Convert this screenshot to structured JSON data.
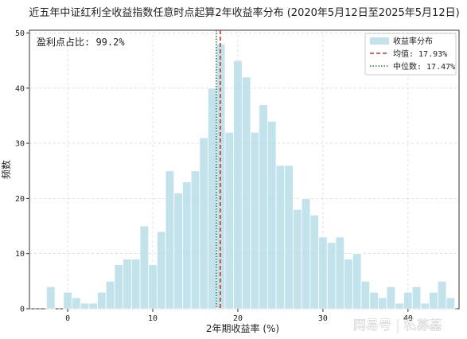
{
  "watermark": "网易号 | 私募基",
  "chart_data": {
    "type": "bar",
    "title": "近五年中证红利全收益指数任意时点起算2年收益率分布 (2020年5月12日至2025年5月12日)",
    "xlabel": "2年期收益率 (%)",
    "ylabel": "频数",
    "annotation": "盈利点占比: 99.2%",
    "xlim": [
      -4.5,
      46
    ],
    "ylim": [
      0,
      50.5
    ],
    "xticks": [
      0,
      10,
      20,
      30,
      40
    ],
    "yticks": [
      0,
      10,
      20,
      30,
      40,
      50
    ],
    "grid": true,
    "legend_position": "top-right",
    "bar_color": "#add8e6",
    "mean_color": "#c0392b",
    "median_color": "#2e7d32",
    "legend": {
      "hist_label": "收益率分布",
      "mean_label": "均值: 17.93%",
      "median_label": "中位数: 17.47%"
    },
    "mean": 17.93,
    "median": 17.47,
    "bins": [
      [
        -2.5,
        -1.5,
        4
      ],
      [
        -1.5,
        -0.5,
        0
      ],
      [
        -0.5,
        0.5,
        3
      ],
      [
        0.5,
        1.5,
        2
      ],
      [
        1.5,
        2.5,
        1
      ],
      [
        2.5,
        3.5,
        1
      ],
      [
        3.5,
        4.5,
        3
      ],
      [
        4.5,
        5.5,
        5
      ],
      [
        5.5,
        6.5,
        8
      ],
      [
        6.5,
        7.5,
        9
      ],
      [
        7.5,
        8.5,
        9
      ],
      [
        8.5,
        9.5,
        15
      ],
      [
        9.5,
        10.5,
        8
      ],
      [
        10.5,
        11.5,
        14
      ],
      [
        11.5,
        12.5,
        25
      ],
      [
        12.5,
        13.5,
        21
      ],
      [
        13.5,
        14.5,
        23
      ],
      [
        14.5,
        15.5,
        25
      ],
      [
        15.5,
        16.5,
        31
      ],
      [
        16.5,
        17.5,
        40
      ],
      [
        17.5,
        18.5,
        48
      ],
      [
        18.5,
        19.5,
        32
      ],
      [
        19.5,
        20.5,
        45
      ],
      [
        20.5,
        21.5,
        42
      ],
      [
        21.5,
        22.5,
        32
      ],
      [
        22.5,
        23.5,
        37
      ],
      [
        23.5,
        24.5,
        34
      ],
      [
        24.5,
        25.5,
        26
      ],
      [
        25.5,
        26.5,
        26
      ],
      [
        26.5,
        27.5,
        18
      ],
      [
        27.5,
        28.5,
        20
      ],
      [
        28.5,
        29.5,
        17
      ],
      [
        29.5,
        30.5,
        13
      ],
      [
        30.5,
        31.5,
        12
      ],
      [
        31.5,
        32.5,
        13
      ],
      [
        32.5,
        33.5,
        9
      ],
      [
        33.5,
        34.5,
        10
      ],
      [
        34.5,
        35.5,
        5
      ],
      [
        35.5,
        36.5,
        3
      ],
      [
        36.5,
        37.5,
        2
      ],
      [
        37.5,
        38.5,
        4
      ],
      [
        38.5,
        39.5,
        1
      ],
      [
        39.5,
        40.5,
        3
      ],
      [
        40.5,
        41.5,
        4
      ],
      [
        41.5,
        42.5,
        1
      ],
      [
        42.5,
        43.5,
        3
      ],
      [
        43.5,
        44.5,
        5
      ],
      [
        44.5,
        45.5,
        2
      ]
    ]
  }
}
